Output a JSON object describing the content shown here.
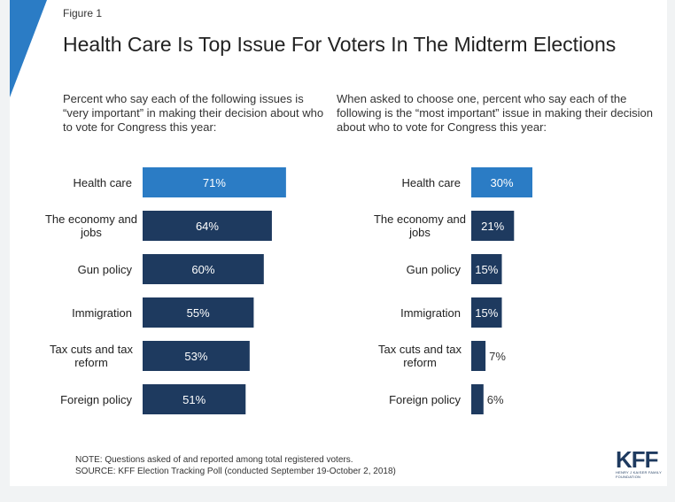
{
  "figure_label": "Figure 1",
  "title": "Health Care Is Top Issue For Voters In The Midterm Elections",
  "note": "NOTE: Questions asked of and reported among total registered voters.",
  "source": "SOURCE: KFF Election Tracking Poll (conducted September 19-October 2, 2018)",
  "logo": {
    "text": "KFF",
    "subtext": "HENRY J KAISER FAMILY FOUNDATION"
  },
  "colors": {
    "highlight": "#2b7cc5",
    "bar": "#1e3a5f",
    "accent_corner": "#2b7cc5"
  },
  "chart_data": [
    {
      "type": "bar",
      "orientation": "horizontal",
      "subtitle": "Percent who say each of the following issues is “very important” in making their decision about who to vote for Congress this year:",
      "categories": [
        "Health care",
        "The economy and jobs",
        "Gun policy",
        "Immigration",
        "Tax cuts and tax reform",
        "Foreign policy"
      ],
      "values": [
        71,
        64,
        60,
        55,
        53,
        51
      ],
      "labels": [
        "71%",
        "64%",
        "60%",
        "55%",
        "53%",
        "51%"
      ],
      "highlight_index": 0,
      "xlim": [
        0,
        100
      ]
    },
    {
      "type": "bar",
      "orientation": "horizontal",
      "subtitle": "When asked to choose one, percent who say each of the following is the “most important” issue in making their decision about who to vote for Congress this year:",
      "categories": [
        "Health care",
        "The economy and jobs",
        "Gun policy",
        "Immigration",
        "Tax cuts and tax reform",
        "Foreign policy"
      ],
      "values": [
        30,
        21,
        15,
        15,
        7,
        6
      ],
      "labels": [
        "30%",
        "21%",
        "15%",
        "15%",
        "7%",
        "6%"
      ],
      "highlight_index": 0,
      "xlim": [
        0,
        100
      ]
    }
  ]
}
